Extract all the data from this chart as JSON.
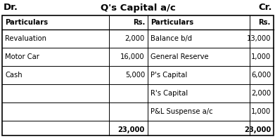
{
  "title": "Q's Capital a/c",
  "dr_label": "Dr.",
  "cr_label": "Cr.",
  "header_left": [
    "Particulars",
    "Rs."
  ],
  "header_right": [
    "Particulars",
    "Rs."
  ],
  "left_rows": [
    [
      "Revaluation",
      "2,000"
    ],
    [
      "Motor Car",
      "16,000"
    ],
    [
      "Cash",
      "5,000"
    ],
    [
      "",
      ""
    ],
    [
      "",
      ""
    ],
    [
      "",
      "23,000"
    ]
  ],
  "right_rows": [
    [
      "Balance b/d",
      "13,000"
    ],
    [
      "General Reserve",
      "1,000"
    ],
    [
      "P's Capital",
      "6,000"
    ],
    [
      "R's Capital",
      "2,000"
    ],
    [
      "P&L Suspense a/c",
      "1,000"
    ],
    [
      "",
      "23,000"
    ]
  ],
  "bg_color": "#ffffff",
  "border_color": "#000000",
  "text_color": "#000000",
  "font_size": 7.2,
  "title_font_size": 9.5
}
